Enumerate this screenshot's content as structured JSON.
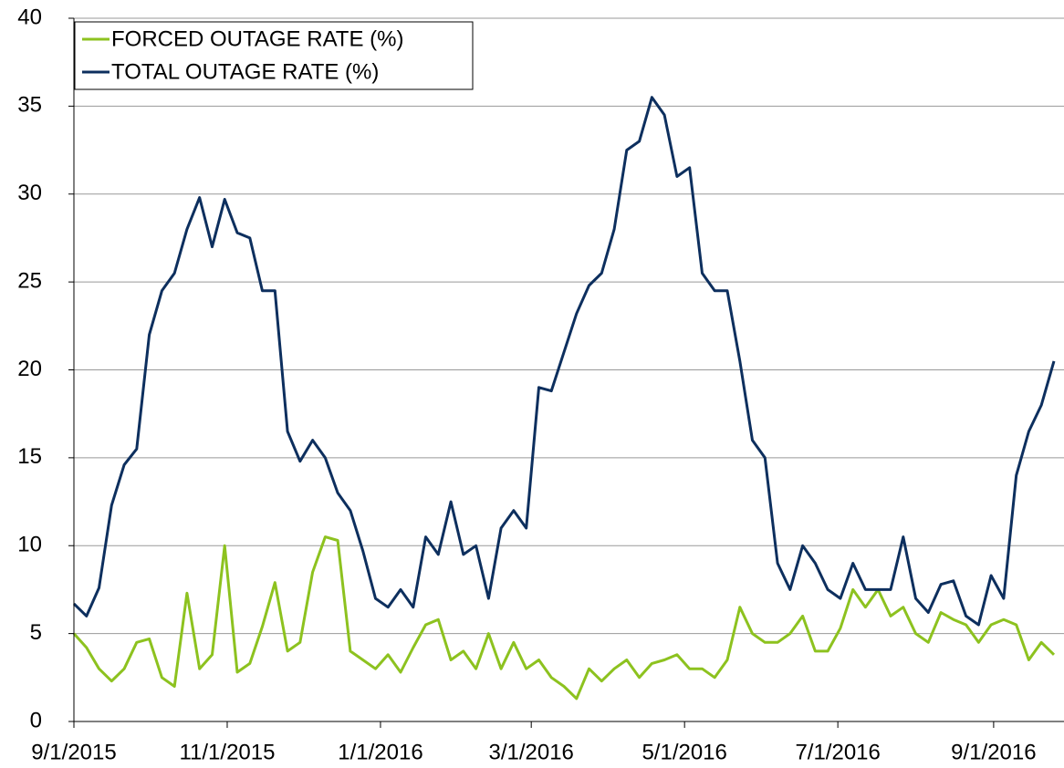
{
  "chart_data": {
    "type": "line",
    "x": [
      "9/1/2015",
      "9/6/2015",
      "9/11/2015",
      "9/16/2015",
      "9/21/2015",
      "9/26/2015",
      "10/1/2015",
      "10/6/2015",
      "10/11/2015",
      "10/16/2015",
      "10/21/2015",
      "10/26/2015",
      "10/31/2015",
      "11/5/2015",
      "11/10/2015",
      "11/15/2015",
      "11/20/2015",
      "11/25/2015",
      "11/30/2015",
      "12/5/2015",
      "12/10/2015",
      "12/15/2015",
      "12/20/2015",
      "12/25/2015",
      "12/30/2015",
      "1/4/2016",
      "1/9/2016",
      "1/14/2016",
      "1/19/2016",
      "1/24/2016",
      "1/29/2016",
      "2/3/2016",
      "2/8/2016",
      "2/13/2016",
      "2/18/2016",
      "2/23/2016",
      "2/28/2016",
      "3/4/2016",
      "3/9/2016",
      "3/14/2016",
      "3/19/2016",
      "3/24/2016",
      "3/29/2016",
      "4/3/2016",
      "4/8/2016",
      "4/13/2016",
      "4/18/2016",
      "4/23/2016",
      "4/28/2016",
      "5/3/2016",
      "5/8/2016",
      "5/13/2016",
      "5/18/2016",
      "5/23/2016",
      "5/28/2016",
      "6/2/2016",
      "6/7/2016",
      "6/12/2016",
      "6/17/2016",
      "6/22/2016",
      "6/27/2016",
      "7/2/2016",
      "7/7/2016",
      "7/12/2016",
      "7/17/2016",
      "7/22/2016",
      "7/27/2016",
      "8/1/2016",
      "8/6/2016",
      "8/11/2016",
      "8/16/2016",
      "8/21/2016",
      "8/26/2016",
      "8/31/2016",
      "9/5/2016",
      "9/10/2016",
      "9/15/2016",
      "9/20/2016",
      "9/25/2016"
    ],
    "series": [
      {
        "name": "FORCED OUTAGE RATE (%)",
        "color": "#8dc21f",
        "values": [
          5.0,
          4.2,
          3.0,
          2.3,
          3.0,
          4.5,
          4.7,
          2.5,
          2.0,
          7.3,
          3.0,
          3.8,
          10.0,
          2.8,
          3.3,
          5.4,
          7.9,
          4.0,
          4.5,
          8.5,
          10.5,
          10.3,
          4.0,
          3.5,
          3.0,
          3.8,
          2.8,
          4.2,
          5.5,
          5.8,
          3.5,
          4.0,
          3.0,
          5.0,
          3.0,
          4.5,
          3.0,
          3.5,
          2.5,
          2.0,
          1.3,
          3.0,
          2.3,
          3.0,
          3.5,
          2.5,
          3.3,
          3.5,
          3.8,
          3.0,
          3.0,
          2.5,
          3.5,
          6.5,
          5.0,
          4.5,
          4.5,
          5.0,
          6.0,
          4.0,
          4.0,
          5.3,
          7.5,
          6.5,
          7.5,
          6.0,
          6.5,
          5.0,
          4.5,
          6.2,
          5.8,
          5.5,
          4.5,
          5.5,
          5.8,
          5.5,
          3.5,
          4.5,
          3.8
        ]
      },
      {
        "name": "TOTAL OUTAGE RATE (%)",
        "color": "#0d2f5e",
        "values": [
          6.7,
          6.0,
          7.6,
          12.3,
          14.6,
          15.5,
          22.0,
          24.5,
          25.5,
          28.0,
          29.8,
          27.0,
          29.7,
          27.8,
          27.5,
          24.5,
          24.5,
          16.5,
          14.8,
          16.0,
          15.0,
          13.0,
          12.0,
          9.7,
          7.0,
          6.5,
          7.5,
          6.5,
          10.5,
          9.5,
          12.5,
          9.5,
          10.0,
          7.0,
          11.0,
          12.0,
          11.0,
          19.0,
          18.8,
          21.0,
          23.2,
          24.8,
          25.5,
          28.0,
          32.5,
          33.0,
          35.5,
          34.5,
          31.0,
          31.5,
          25.5,
          24.5,
          24.5,
          20.5,
          16.0,
          15.0,
          9.0,
          7.5,
          10.0,
          9.0,
          7.5,
          7.0,
          9.0,
          7.5,
          7.5,
          7.5,
          10.5,
          7.0,
          6.2,
          7.8,
          8.0,
          6.0,
          5.5,
          8.3,
          7.0,
          14.0,
          16.5,
          18.0,
          20.5
        ]
      }
    ],
    "xlim": [
      "9/1/2015",
      "9/29/2016"
    ],
    "xticks": [
      "9/1/2015",
      "11/1/2015",
      "1/1/2016",
      "3/1/2016",
      "5/1/2016",
      "7/1/2016",
      "9/1/2016"
    ],
    "ylim": [
      0,
      40
    ],
    "yticks": [
      0,
      5,
      10,
      15,
      20,
      25,
      30,
      35,
      40
    ],
    "grid": true,
    "legend": "upper-left"
  }
}
